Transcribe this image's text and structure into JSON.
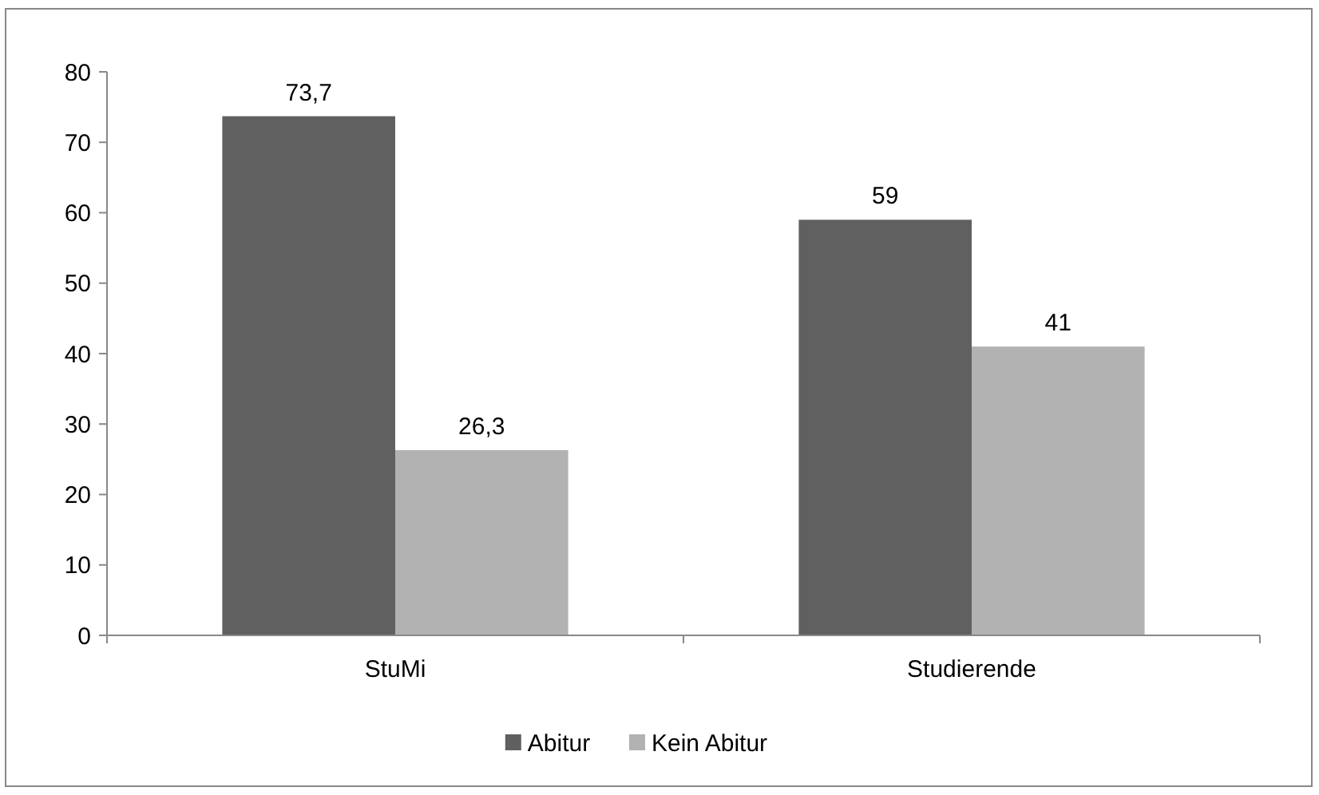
{
  "chart_data": {
    "type": "bar",
    "categories": [
      "StuMi",
      "Studierende"
    ],
    "series": [
      {
        "name": "Abitur",
        "color": "#606060",
        "values": [
          73.7,
          59
        ],
        "value_labels": [
          "73,7",
          "59"
        ]
      },
      {
        "name": "Kein Abitur",
        "color": "#b2b2b2",
        "values": [
          26.3,
          41
        ],
        "value_labels": [
          "26,3",
          "41"
        ]
      }
    ],
    "ylim": [
      0,
      80
    ],
    "yticks": [
      0,
      10,
      20,
      30,
      40,
      50,
      60,
      70,
      80
    ],
    "grid": false,
    "legend": "bottom"
  }
}
